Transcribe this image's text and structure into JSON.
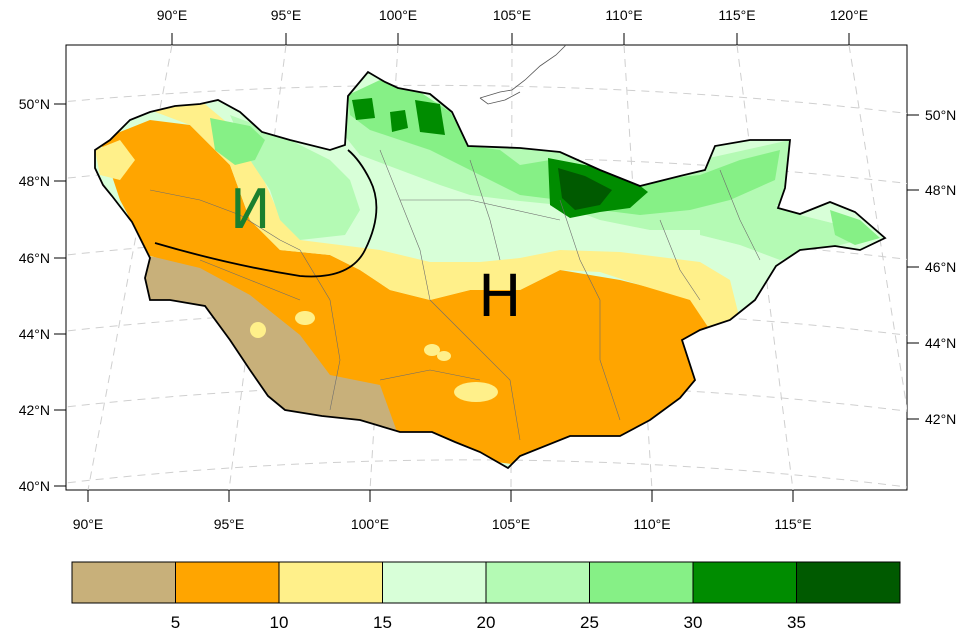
{
  "map": {
    "type": "filled-contour-map",
    "region": "Mongolia",
    "projection": "conic (curved graticule)",
    "lon_range": [
      89.5,
      122
    ],
    "lat_range": [
      40,
      51.5
    ],
    "top_lon_ticks": [
      "90°E",
      "95°E",
      "100°E",
      "105°E",
      "110°E",
      "115°E",
      "120°E"
    ],
    "bottom_lon_ticks": [
      "90°E",
      "95°E",
      "100°E",
      "105°E",
      "110°E",
      "115°E"
    ],
    "left_lat_ticks": [
      "50°N",
      "48°N",
      "46°N",
      "44°N",
      "42°N",
      "40°N"
    ],
    "right_lat_ticks": [
      "50°N",
      "48°N",
      "46°N",
      "44°N",
      "42°N"
    ],
    "annotations": [
      {
        "text": "И",
        "color": "#1a7f2e"
      },
      {
        "text": "Н",
        "color": "#000000"
      }
    ],
    "grid": true
  },
  "colorbar": {
    "orientation": "horizontal",
    "placement": "bottom",
    "bins": [
      {
        "color": "#c8b07a"
      },
      {
        "color": "#ffa500"
      },
      {
        "color": "#fff08a"
      },
      {
        "color": "#d8ffd8"
      },
      {
        "color": "#b4fab4"
      },
      {
        "color": "#86f086"
      },
      {
        "color": "#008c00"
      },
      {
        "color": "#005a00"
      }
    ],
    "labels": [
      "5",
      "10",
      "15",
      "20",
      "25",
      "30",
      "35"
    ]
  }
}
